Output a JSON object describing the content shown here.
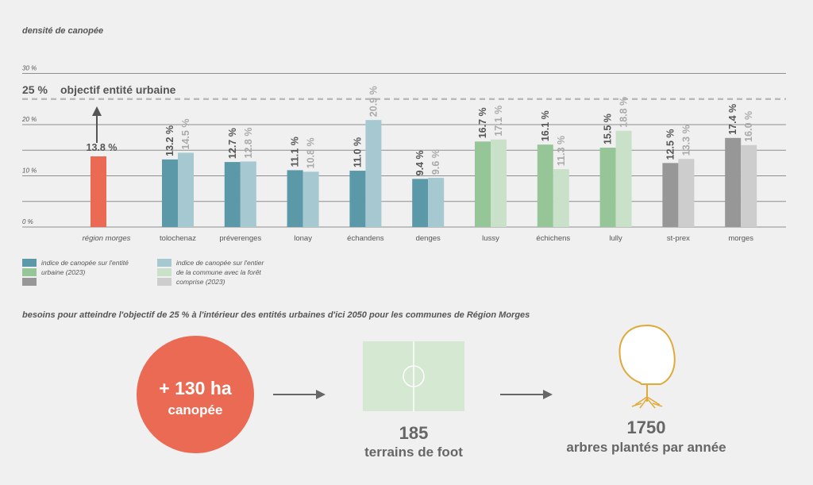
{
  "title": "densité de canopée",
  "goal": {
    "value": 25,
    "label_pct": "25 %",
    "label_text": "objectif entité urbaine"
  },
  "colors": {
    "region": "#ea6a53",
    "teal": "#5c99a8",
    "teal_light": "#a6c8d0",
    "green": "#96c598",
    "green_light": "#c9e1c9",
    "grey": "#979797",
    "grey_light": "#cdcdcd",
    "label_dark": "#555555",
    "label_light": "#aaaaaa",
    "goal_line": "#b5b5b5"
  },
  "chart_data": {
    "type": "bar",
    "ylim": [
      0,
      30
    ],
    "yticks": [
      {
        "value": 0,
        "label": "0 %"
      },
      {
        "value": 10,
        "label": "10 %"
      },
      {
        "value": 20,
        "label": "20 %"
      },
      {
        "value": 30,
        "label": "30 %"
      }
    ],
    "gridlines": [
      0,
      5,
      10,
      15,
      20,
      30
    ],
    "region": {
      "category": "région morges",
      "value": 13.8,
      "label": "13.8 %"
    },
    "groups": [
      {
        "category": "tolochenaz",
        "palette": "teal",
        "urban": 13.2,
        "urban_label": "13.2 %",
        "commune": 14.5,
        "commune_label": "14.5 %"
      },
      {
        "category": "préverenges",
        "palette": "teal",
        "urban": 12.7,
        "urban_label": "12.7 %",
        "commune": 12.8,
        "commune_label": "12.8 %"
      },
      {
        "category": "lonay",
        "palette": "teal",
        "urban": 11.1,
        "urban_label": "11.1 %",
        "commune": 10.8,
        "commune_label": "10.8 %"
      },
      {
        "category": "échandens",
        "palette": "teal",
        "urban": 11.0,
        "urban_label": "11.0 %",
        "commune": 20.9,
        "commune_label": "20.9 %"
      },
      {
        "category": "denges",
        "palette": "teal",
        "urban": 9.4,
        "urban_label": "9.4 %",
        "commune": 9.6,
        "commune_label": "9.6 %"
      },
      {
        "category": "lussy",
        "palette": "green",
        "urban": 16.7,
        "urban_label": "16.7 %",
        "commune": 17.1,
        "commune_label": "17.1 %"
      },
      {
        "category": "échichens",
        "palette": "green",
        "urban": 16.1,
        "urban_label": "16.1 %",
        "commune": 11.3,
        "commune_label": "11.3 %"
      },
      {
        "category": "lully",
        "palette": "green",
        "urban": 15.5,
        "urban_label": "15.5 %",
        "commune": 18.8,
        "commune_label": "18.8 %"
      },
      {
        "category": "st-prex",
        "palette": "grey",
        "urban": 12.5,
        "urban_label": "12.5 %",
        "commune": 13.3,
        "commune_label": "13.3 %"
      },
      {
        "category": "morges",
        "palette": "grey",
        "urban": 17.4,
        "urban_label": "17.4 %",
        "commune": 16.0,
        "commune_label": "16.0 %"
      }
    ]
  },
  "legend": {
    "urban_line1": "indice de canopée sur l'entité",
    "urban_line2": "urbaine (2023)",
    "commune_line1": "indice de canopée sur l'entier",
    "commune_line2": "de la commune avec la forêt",
    "commune_line3": "comprise (2023)"
  },
  "bottom": {
    "title": "besoins pour atteindre l'objectif de 25 % à l'intérieur des entités urbaines d'ici 2050 pour les communes de Région Morges",
    "circle_line1": "+ 130 ha",
    "circle_line2": "canopée",
    "field_number": "185",
    "field_label": "terrains de foot",
    "tree_number": "1750",
    "tree_label": "arbres plantés par année"
  }
}
